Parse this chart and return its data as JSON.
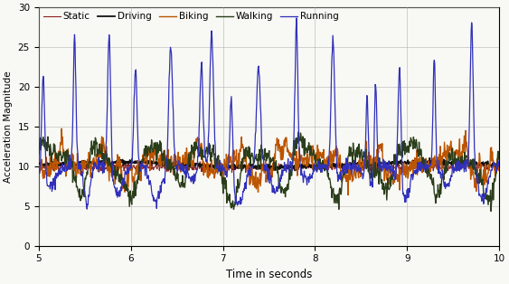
{
  "xlabel": "Time in seconds",
  "ylabel": "Acceleration Magnitude",
  "xlim": [
    5,
    10
  ],
  "ylim": [
    0,
    30
  ],
  "xticks": [
    5,
    6,
    7,
    8,
    9,
    10
  ],
  "yticks": [
    0,
    5,
    10,
    15,
    20,
    25,
    30
  ],
  "legend_order": [
    "Static",
    "Walking",
    "Running",
    "Biking",
    "Driving"
  ],
  "colors": {
    "Static": "#8B2020",
    "Walking": "#2A3D1A",
    "Running": "#3030BB",
    "Biking": "#BB5500",
    "Driving": "#111111"
  },
  "linewidths": {
    "Static": 0.8,
    "Walking": 1.0,
    "Running": 0.9,
    "Biking": 1.0,
    "Driving": 1.3
  },
  "seed": 7,
  "n_points": 1000,
  "bg_color": "#F8F8F4"
}
